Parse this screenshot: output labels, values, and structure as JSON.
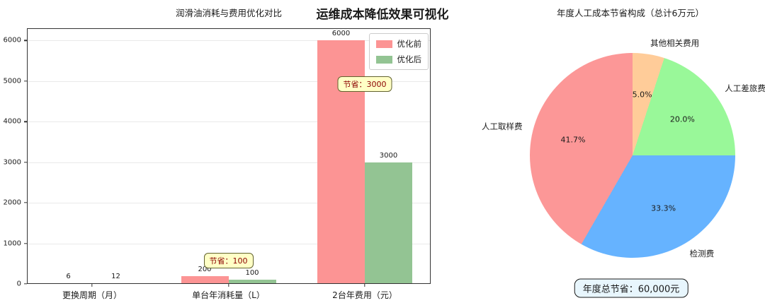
{
  "figure": {
    "suptitle": "运维成本降低效果可视化",
    "background": "#ffffff"
  },
  "chart_data": [
    {
      "type": "bar",
      "title": "润滑油消耗与费用优化对比",
      "categories": [
        "更换周期（月）",
        "单台年消耗量（L）",
        "2台年费用（元）"
      ],
      "series": [
        {
          "name": "优化前",
          "color": "#fc9494",
          "values": [
            6,
            200,
            6000
          ]
        },
        {
          "name": "优化后",
          "color": "#93c493",
          "values": [
            12,
            100,
            3000
          ]
        }
      ],
      "value_labels": [
        [
          "6",
          "200",
          "6000"
        ],
        [
          "12",
          "100",
          "3000"
        ]
      ],
      "ylim": [
        0,
        6300
      ],
      "yticks": [
        0,
        1000,
        2000,
        3000,
        4000,
        5000,
        6000
      ],
      "grid": true,
      "legend_position": "upper right",
      "annotations": [
        {
          "category_index": 1,
          "label": "节省：100"
        },
        {
          "category_index": 2,
          "label": "节省：3000"
        }
      ],
      "annotation_style": {
        "bg": "#ffffc6",
        "border": "#62622e",
        "text_color": "#8b0000"
      }
    },
    {
      "type": "pie",
      "title": "年度人工成本节省构成（总计6万元）",
      "start": "top",
      "direction": "clockwise",
      "slices": [
        {
          "label": "其他相关费用",
          "pct": 5.0,
          "pct_label": "5.0%",
          "color": "#ffcc99"
        },
        {
          "label": "人工差旅费",
          "pct": 20.0,
          "pct_label": "20.0%",
          "color": "#99f899"
        },
        {
          "label": "检测费",
          "pct": 33.3,
          "pct_label": "33.3%",
          "color": "#66b3ff"
        },
        {
          "label": "人工取样费",
          "pct": 41.7,
          "pct_label": "41.7%",
          "color": "#fc9797"
        }
      ],
      "footer_annotation": "年度总节省：60,000元",
      "footer_style": {
        "bg": "#e8f6fd",
        "border": "#1a1a1a"
      }
    }
  ]
}
